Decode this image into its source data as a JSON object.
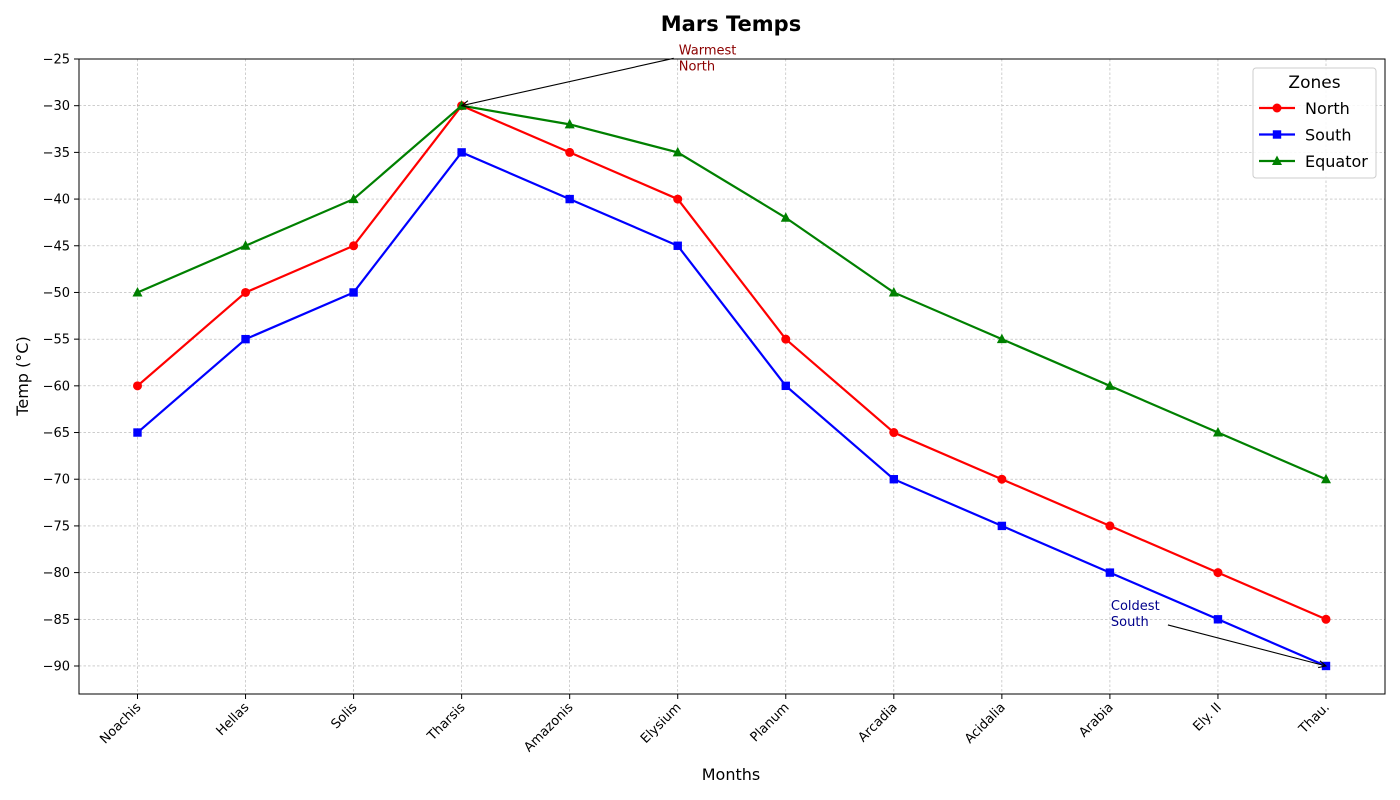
{
  "chart_data": {
    "type": "line",
    "title": "Mars Temps",
    "xlabel": "Months",
    "ylabel": "Temp (°C)",
    "categories": [
      "Noachis",
      "Hellas",
      "Solis",
      "Tharsis",
      "Amazonis",
      "Elysium",
      "Planum",
      "Arcadia",
      "Acidalia",
      "Arabia",
      "Ely. II",
      "Thau."
    ],
    "ylim": [
      -93,
      -25
    ],
    "yticks": [
      -25,
      -30,
      -35,
      -40,
      -45,
      -50,
      -55,
      -60,
      -65,
      -70,
      -75,
      -80,
      -85,
      -90
    ],
    "grid": true,
    "legend": {
      "title": "Zones",
      "placement": "top-right"
    },
    "series": [
      {
        "name": "North",
        "color": "#ff0000",
        "marker": "circle",
        "values": [
          -60,
          -50,
          -45,
          -30,
          -35,
          -40,
          -55,
          -65,
          -70,
          -75,
          -80,
          -85
        ]
      },
      {
        "name": "South",
        "color": "#0000ff",
        "marker": "square",
        "values": [
          -65,
          -55,
          -50,
          -35,
          -40,
          -45,
          -60,
          -70,
          -75,
          -80,
          -85,
          -90
        ]
      },
      {
        "name": "Equator",
        "color": "#008000",
        "marker": "triangle",
        "values": [
          -50,
          -45,
          -40,
          -30,
          -32,
          -35,
          -42,
          -50,
          -55,
          -60,
          -65,
          -70
        ]
      }
    ],
    "annotations": [
      {
        "lines": [
          "Warmest",
          "North"
        ],
        "color": "#8b0000",
        "target_category": "Tharsis",
        "target_value": -30,
        "text_category": "Elysium",
        "text_value": -24.5
      },
      {
        "lines": [
          "Coldest",
          "South"
        ],
        "color": "#00008b",
        "target_category": "Thau.",
        "target_value": -90,
        "text_category": "Arabia",
        "text_value": -84
      }
    ]
  }
}
